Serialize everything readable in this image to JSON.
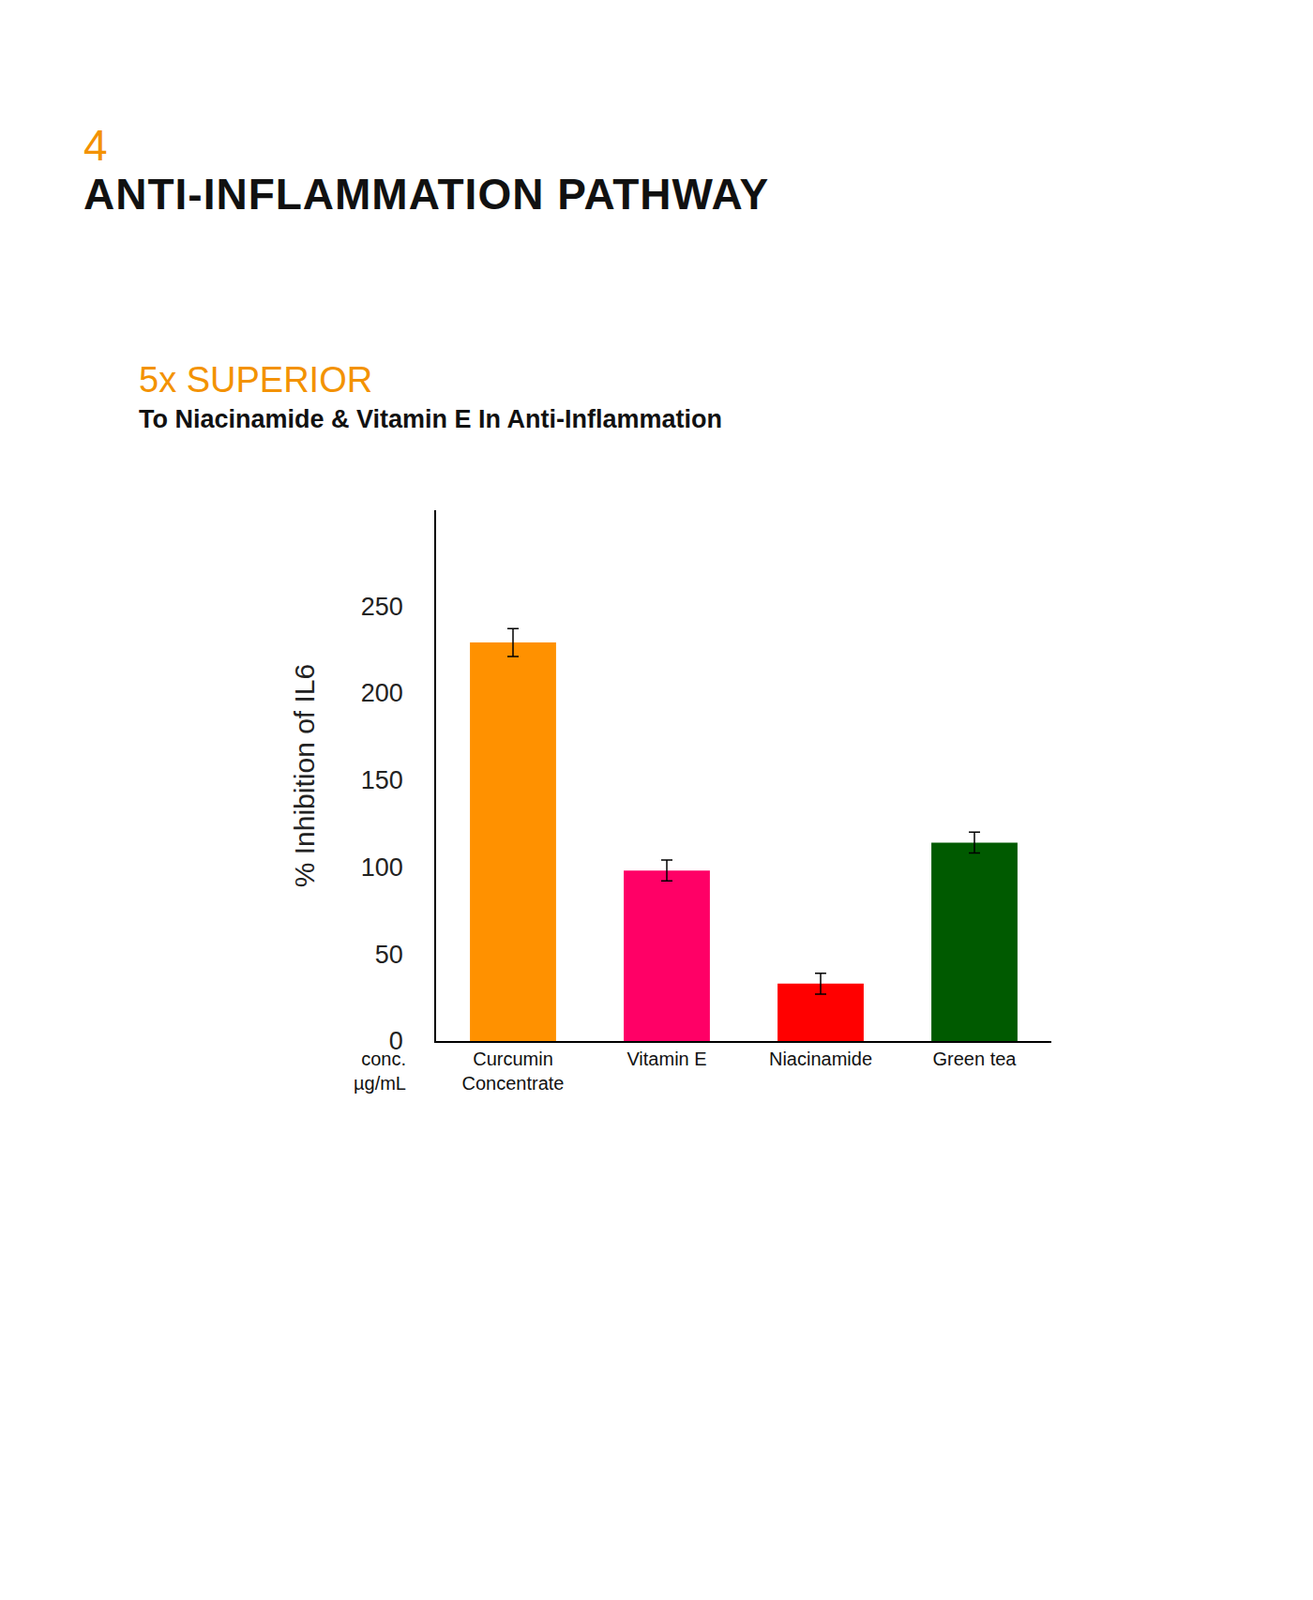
{
  "header": {
    "number": "4",
    "title": "ANTI-INFLAMMATION PATHWAY"
  },
  "chart_data": {
    "type": "bar",
    "title": "5x SUPERIOR",
    "subtitle": "To Niacinamide & Vitamin E In Anti-Inflammation",
    "y_label": "% Inhibition of IL6",
    "annotations": [
      "conc. µg/mL"
    ],
    "categories": [
      "Curcumin Concentrate",
      "Vitamin E",
      "Niacinamide",
      "Green tea"
    ],
    "values": [
      229,
      98,
      33,
      114
    ],
    "errors": [
      8,
      6,
      6,
      6
    ],
    "colors": [
      "#FF9100",
      "#FF0066",
      "#FF0000",
      "#005A00"
    ],
    "ylim": [
      0,
      305
    ],
    "yticks": [
      0,
      50,
      100,
      150,
      200,
      250
    ],
    "grid": false
  }
}
